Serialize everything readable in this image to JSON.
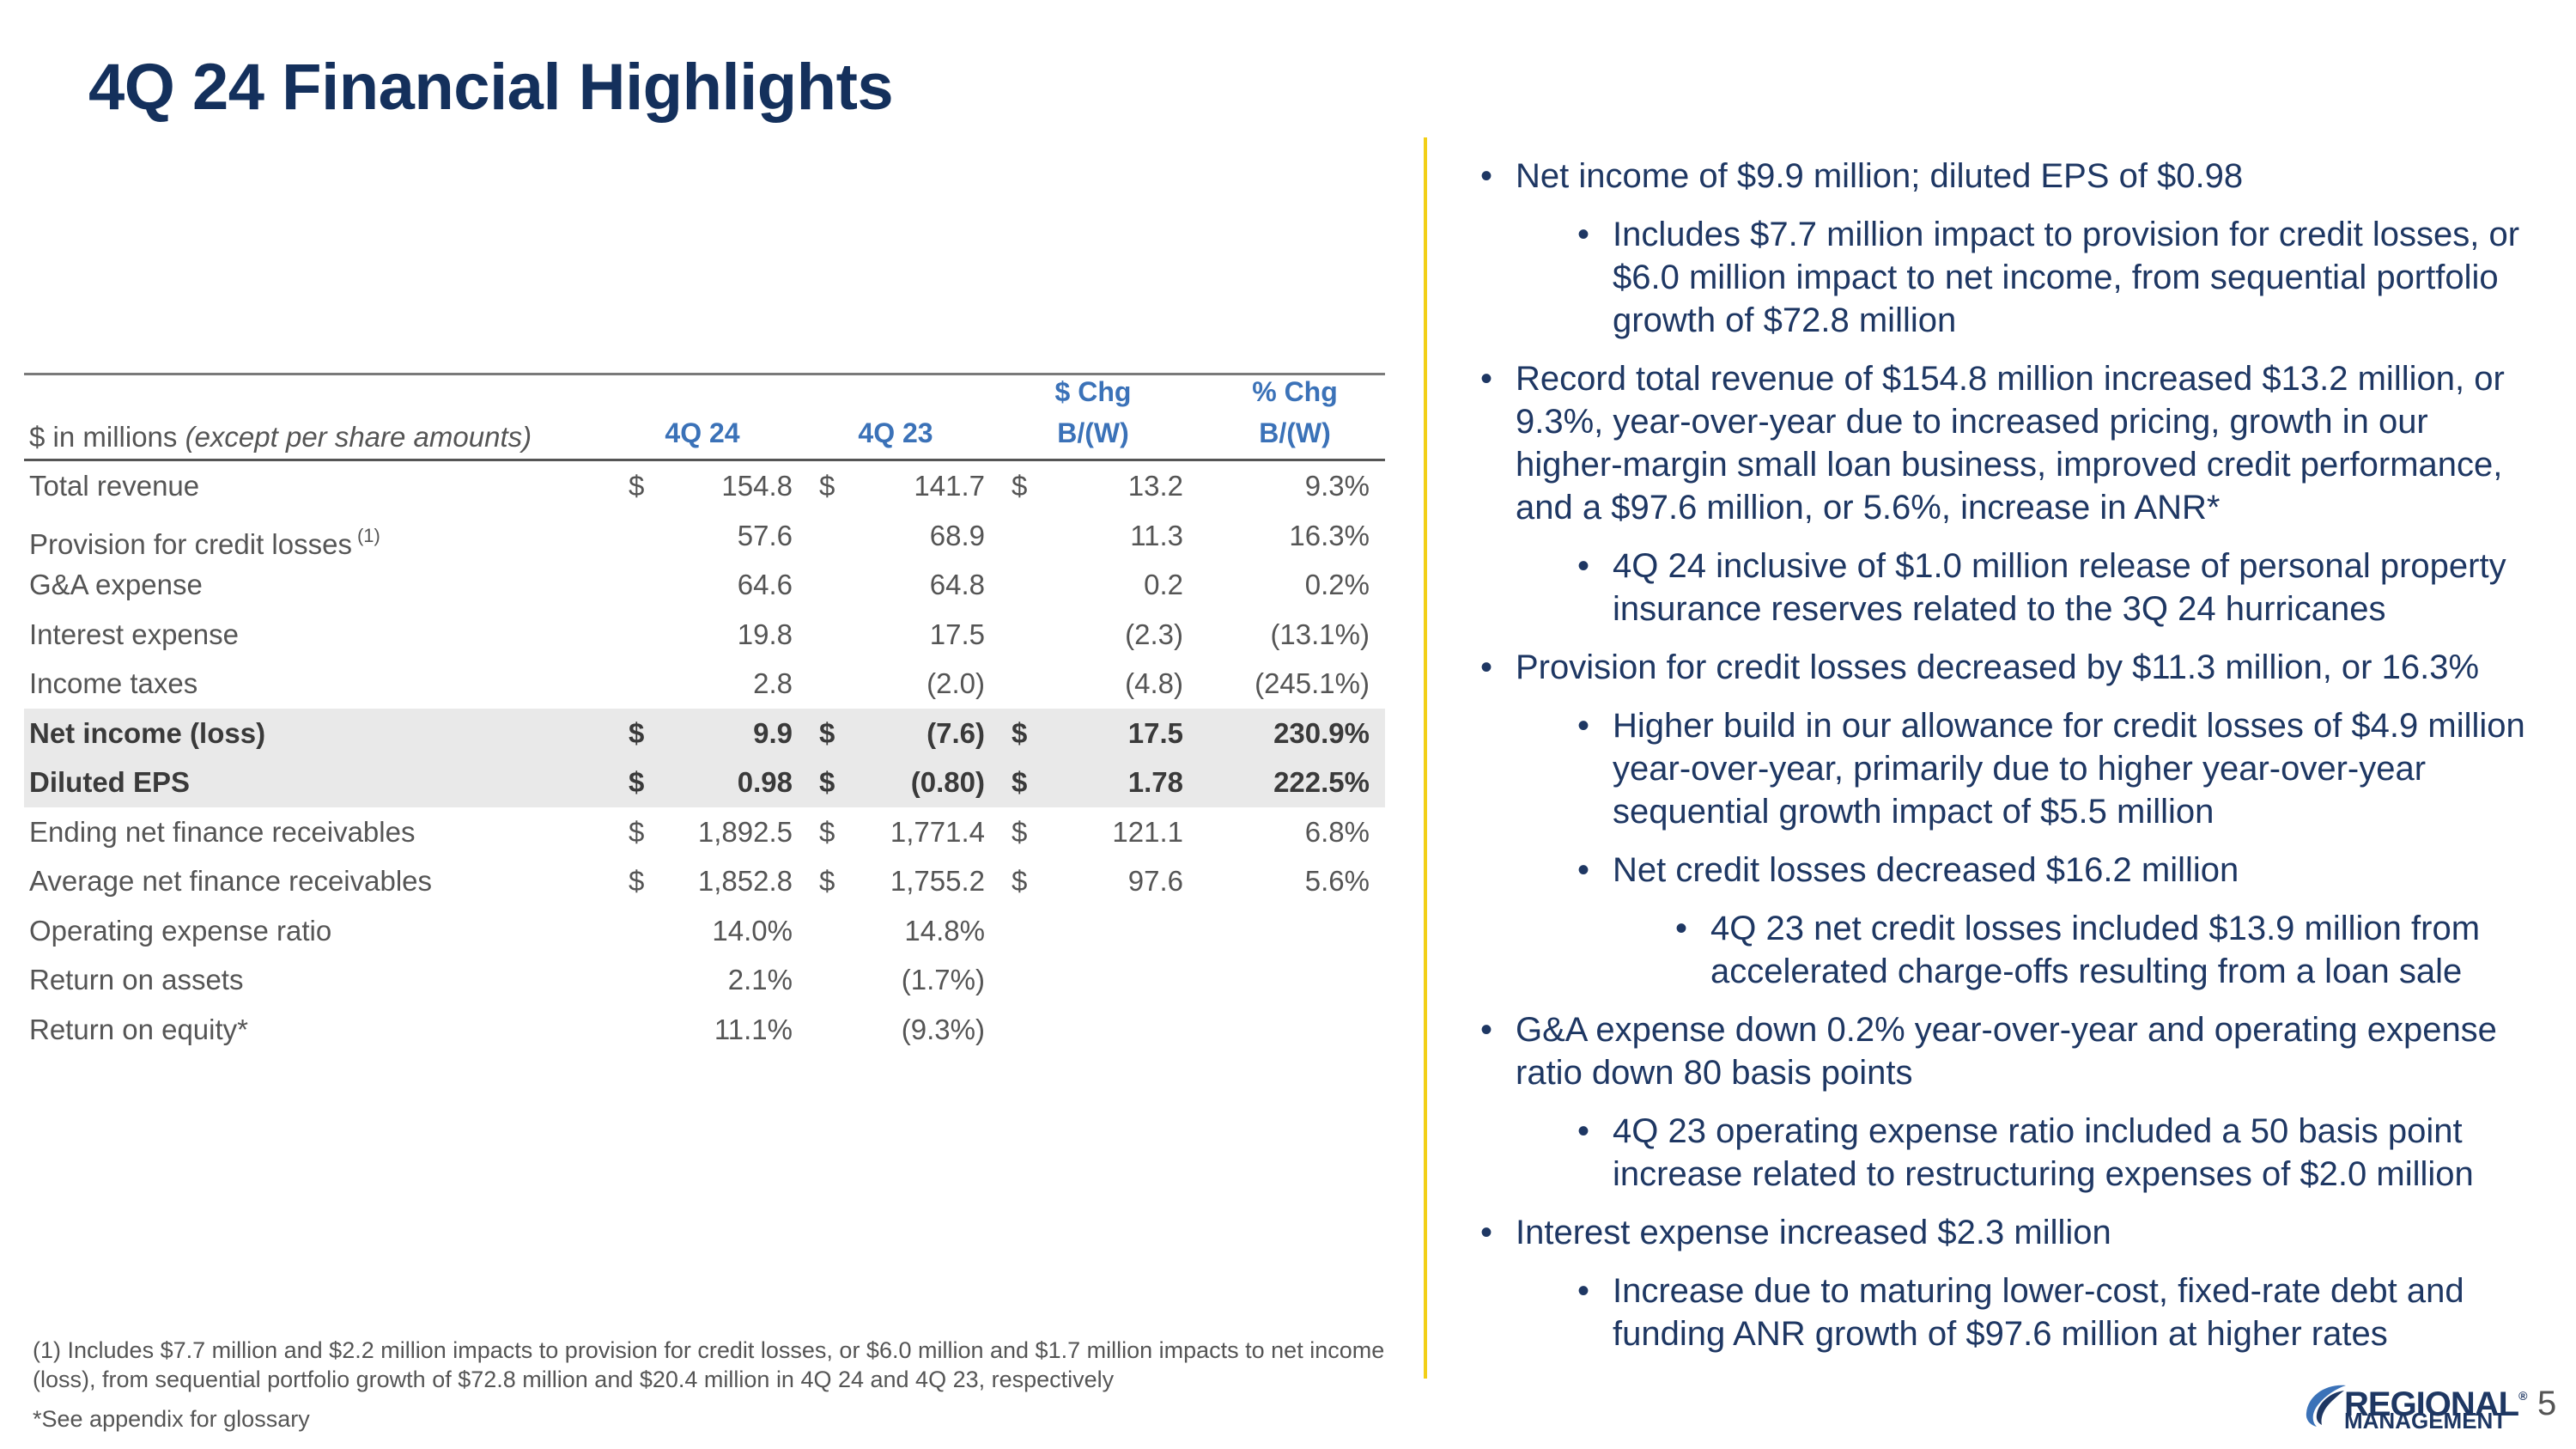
{
  "title": "4Q 24 Financial Highlights",
  "table": {
    "header": {
      "label_prefix": "$ in millions ",
      "label_italic": "(except per share amounts)",
      "col1": "4Q 24",
      "col2": "4Q 23",
      "col3_line1": "$ Chg",
      "col3_line2": "B/(W)",
      "col4_line1": "% Chg",
      "col4_line2": "B/(W)"
    },
    "rows": [
      {
        "label": "Total revenue",
        "sup": "",
        "c1": "$",
        "v1": "154.8",
        "c2": "$",
        "v2": "141.7",
        "c3": "$",
        "v3": "13.2",
        "v4": "9.3%",
        "shaded": false
      },
      {
        "label": "Provision for credit losses",
        "sup": "(1)",
        "c1": "",
        "v1": "57.6",
        "c2": "",
        "v2": "68.9",
        "c3": "",
        "v3": "11.3",
        "v4": "16.3%",
        "shaded": false
      },
      {
        "label": "G&A expense",
        "sup": "",
        "c1": "",
        "v1": "64.6",
        "c2": "",
        "v2": "64.8",
        "c3": "",
        "v3": "0.2",
        "v4": "0.2%",
        "shaded": false
      },
      {
        "label": "Interest expense",
        "sup": "",
        "c1": "",
        "v1": "19.8",
        "c2": "",
        "v2": "17.5",
        "c3": "",
        "v3": "(2.3)",
        "v4": "(13.1%)",
        "shaded": false
      },
      {
        "label": "Income taxes",
        "sup": "",
        "c1": "",
        "v1": "2.8",
        "c2": "",
        "v2": "(2.0)",
        "c3": "",
        "v3": "(4.8)",
        "v4": "(245.1%)",
        "shaded": false
      },
      {
        "label": "Net income (loss)",
        "sup": "",
        "c1": "$",
        "v1": "9.9",
        "c2": "$",
        "v2": "(7.6)",
        "c3": "$",
        "v3": "17.5",
        "v4": "230.9%",
        "shaded": true
      },
      {
        "label": "Diluted EPS",
        "sup": "",
        "c1": "$",
        "v1": "0.98",
        "c2": "$",
        "v2": "(0.80)",
        "c3": "$",
        "v3": "1.78",
        "v4": "222.5%",
        "shaded": true
      },
      {
        "label": "Ending net finance receivables",
        "sup": "",
        "c1": "$",
        "v1": "1,892.5",
        "c2": "$",
        "v2": "1,771.4",
        "c3": "$",
        "v3": "121.1",
        "v4": "6.8%",
        "shaded": false
      },
      {
        "label": "Average net finance receivables",
        "sup": "",
        "c1": "$",
        "v1": "1,852.8",
        "c2": "$",
        "v2": "1,755.2",
        "c3": "$",
        "v3": "97.6",
        "v4": "5.6%",
        "shaded": false
      },
      {
        "label": "Operating expense ratio",
        "sup": "",
        "c1": "",
        "v1": "14.0%",
        "c2": "",
        "v2": "14.8%",
        "c3": "",
        "v3": "",
        "v4": "",
        "shaded": false
      },
      {
        "label": "Return on assets",
        "sup": "",
        "c1": "",
        "v1": "2.1%",
        "c2": "",
        "v2": "(1.7%)",
        "c3": "",
        "v3": "",
        "v4": "",
        "shaded": false
      },
      {
        "label": "Return on equity*",
        "sup": "",
        "c1": "",
        "v1": "11.1%",
        "c2": "",
        "v2": "(9.3%)",
        "c3": "",
        "v3": "",
        "v4": "",
        "shaded": false
      }
    ]
  },
  "footnote": "(1) Includes $7.7 million and $2.2 million impacts to provision for credit losses, or $6.0 million and $1.7 million impacts to net income (loss), from sequential portfolio growth of $72.8 million and $20.4 million in 4Q 24 and 4Q 23, respectively",
  "glossary_note": "*See appendix for glossary",
  "bullets": [
    {
      "level": 1,
      "text": "Net income of $9.9 million; diluted EPS of $0.98"
    },
    {
      "level": 2,
      "text": "Includes $7.7 million impact to provision for credit losses, or $6.0 million impact to net income, from sequential portfolio growth of $72.8 million"
    },
    {
      "level": 1,
      "text": "Record total revenue of $154.8 million increased $13.2 million, or 9.3%, year-over-year due to increased pricing, growth in our higher-margin small loan business, improved credit performance, and a $97.6 million, or 5.6%, increase in ANR*"
    },
    {
      "level": 2,
      "text": "4Q 24 inclusive of $1.0 million release of personal property insurance reserves related to the 3Q 24 hurricanes"
    },
    {
      "level": 1,
      "text": "Provision for credit losses decreased by $11.3 million, or 16.3%"
    },
    {
      "level": 2,
      "text": "Higher build in our allowance for credit losses of $4.9 million year-over-year, primarily due to higher year-over-year sequential growth impact of $5.5 million"
    },
    {
      "level": 2,
      "text": "Net credit losses decreased $16.2 million"
    },
    {
      "level": 3,
      "text": "4Q 23 net credit losses included $13.9 million from accelerated charge-offs resulting from a loan sale"
    },
    {
      "level": 1,
      "text": "G&A expense down 0.2% year-over-year and operating expense ratio down 80 basis points"
    },
    {
      "level": 2,
      "text": "4Q 23 operating expense ratio included a 50 basis point increase related to restructuring expenses of $2.0 million"
    },
    {
      "level": 1,
      "text": "Interest expense increased $2.3 million"
    },
    {
      "level": 2,
      "text": "Increase due to maturing lower-cost, fixed-rate debt and funding ANR growth of $97.6 million at higher rates"
    }
  ],
  "logo": {
    "line1": "REGIONAL",
    "registered": "®",
    "line2": "MANAGEMENT"
  },
  "page_number": "5"
}
